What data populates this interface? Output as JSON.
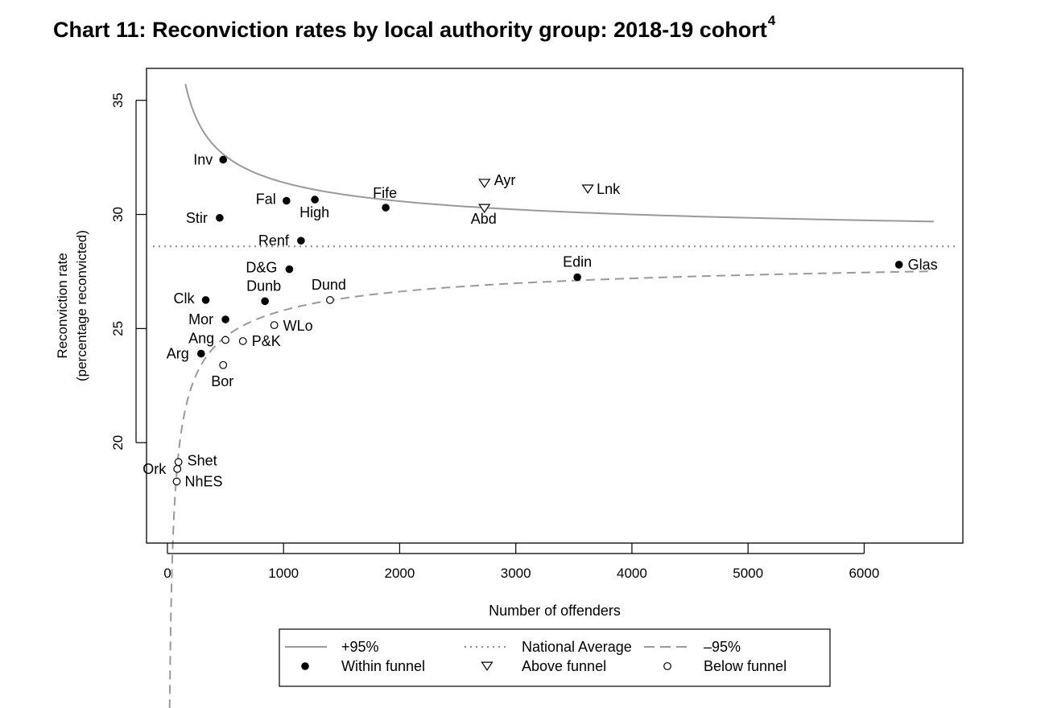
{
  "chart_data": {
    "type": "scatter",
    "title": "Chart 11: Reconviction rates by local authority group: 2018-19 cohort",
    "title_note": "4",
    "xlabel": "Number of offenders",
    "ylabel": "Reconviction rate",
    "ylabel2": "(percentage reconvicted)",
    "xlim": [
      -180,
      6850
    ],
    "ylim": [
      15.6,
      36.4
    ],
    "x_ticks": [
      0,
      1000,
      2000,
      3000,
      4000,
      5000,
      6000
    ],
    "x_tick_labels": [
      "0",
      "1000",
      "2000",
      "3000",
      "4000",
      "5000",
      "6000"
    ],
    "y_ticks": [
      20,
      25,
      30,
      35
    ],
    "y_tick_labels": [
      "20",
      "25",
      "30",
      "35"
    ],
    "grid": false,
    "legend_position": "bottom",
    "national_average": 28.6,
    "funnel": {
      "upper_start_x": 155,
      "upper_end_x": 6600,
      "lower_start_x": 18,
      "lower_end_x": 6600,
      "z": 1.96
    },
    "colors": {
      "points": "#000000",
      "funnel_line": "#999999",
      "axis": "#000000"
    },
    "legend": [
      {
        "label": "+95%",
        "symbol": "solid-line"
      },
      {
        "label": "National Average",
        "symbol": "dotted-line"
      },
      {
        "label": "–95%",
        "symbol": "dashed-line"
      },
      {
        "label": "Within funnel",
        "symbol": "filled-circle"
      },
      {
        "label": "Above funnel",
        "symbol": "triangle-down"
      },
      {
        "label": "Below funnel",
        "symbol": "open-circle"
      }
    ],
    "points": [
      {
        "label": "Inv",
        "x": 480,
        "y": 32.4,
        "category": "within"
      },
      {
        "label": "Stir",
        "x": 450,
        "y": 29.85,
        "category": "within"
      },
      {
        "label": "Fal",
        "x": 1025,
        "y": 30.6,
        "category": "within"
      },
      {
        "label": "High",
        "x": 1270,
        "y": 30.65,
        "category": "within"
      },
      {
        "label": "Fife",
        "x": 1880,
        "y": 30.3,
        "category": "within"
      },
      {
        "label": "Ayr",
        "x": 2730,
        "y": 31.4,
        "category": "above"
      },
      {
        "label": "Abd",
        "x": 2730,
        "y": 30.3,
        "category": "above"
      },
      {
        "label": "Lnk",
        "x": 3620,
        "y": 31.15,
        "category": "above"
      },
      {
        "label": "Renf",
        "x": 1150,
        "y": 28.85,
        "category": "within"
      },
      {
        "label": "D&G",
        "x": 1050,
        "y": 27.6,
        "category": "within"
      },
      {
        "label": "Dunb",
        "x": 840,
        "y": 26.2,
        "category": "within"
      },
      {
        "label": "Dund",
        "x": 1400,
        "y": 26.25,
        "category": "below"
      },
      {
        "label": "Edin",
        "x": 3530,
        "y": 27.25,
        "category": "within"
      },
      {
        "label": "Glas",
        "x": 6300,
        "y": 27.8,
        "category": "within"
      },
      {
        "label": "Clk",
        "x": 330,
        "y": 26.25,
        "category": "within"
      },
      {
        "label": "Mor",
        "x": 500,
        "y": 25.4,
        "category": "within"
      },
      {
        "label": "WLo",
        "x": 920,
        "y": 25.15,
        "category": "below"
      },
      {
        "label": "Ang",
        "x": 500,
        "y": 24.5,
        "category": "below"
      },
      {
        "label": "P&K",
        "x": 650,
        "y": 24.45,
        "category": "below"
      },
      {
        "label": "Arg",
        "x": 290,
        "y": 23.9,
        "category": "within"
      },
      {
        "label": "Bor",
        "x": 480,
        "y": 23.4,
        "category": "below"
      },
      {
        "label": "Shet",
        "x": 95,
        "y": 19.15,
        "category": "below"
      },
      {
        "label": "Ork",
        "x": 85,
        "y": 18.85,
        "category": "below"
      },
      {
        "label": "NhES",
        "x": 80,
        "y": 18.3,
        "category": "below"
      }
    ]
  }
}
